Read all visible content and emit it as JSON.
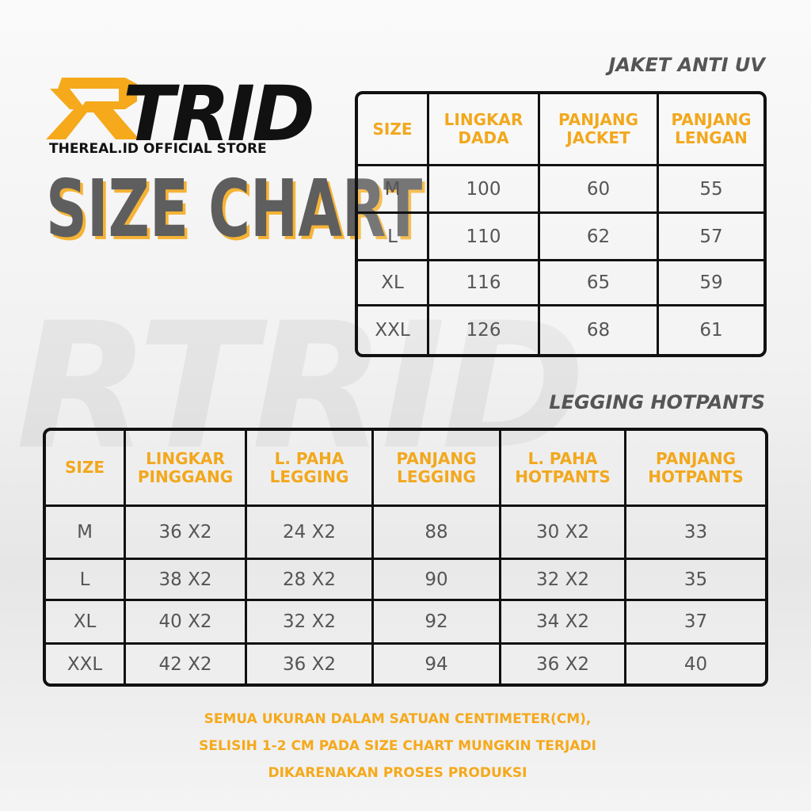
{
  "logo": {
    "text": "TRID",
    "tagline": "THEREAL.ID OFFICIAL STORE"
  },
  "heading": "SIZE CHART",
  "jacket": {
    "title": "JAKET ANTI UV",
    "header": [
      [
        "SIZE"
      ],
      [
        "LINGKAR",
        "DADA"
      ],
      [
        "PANJANG",
        "JACKET"
      ],
      [
        "PANJANG",
        "LENGAN"
      ]
    ],
    "rows": [
      [
        "M",
        "100",
        "60",
        "55"
      ],
      [
        "L",
        "110",
        "62",
        "57"
      ],
      [
        "XL",
        "116",
        "65",
        "59"
      ],
      [
        "XXL",
        "126",
        "68",
        "61"
      ]
    ]
  },
  "legging": {
    "title": "LEGGING HOTPANTS",
    "header": [
      [
        "SIZE"
      ],
      [
        "LINGKAR",
        "PINGGANG"
      ],
      [
        "L. PAHA",
        "LEGGING"
      ],
      [
        "PANJANG",
        "LEGGING"
      ],
      [
        "L. PAHA",
        "HOTPANTS"
      ],
      [
        "PANJANG",
        "HOTPANTS"
      ]
    ],
    "rows": [
      [
        "M",
        "36 X2",
        "24 X2",
        "88",
        "30 X2",
        "33"
      ],
      [
        "L",
        "38 X2",
        "28 X2",
        "90",
        "32 X2",
        "35"
      ],
      [
        "XL",
        "40 X2",
        "32 X2",
        "92",
        "34 X2",
        "37"
      ],
      [
        "XXL",
        "42 X2",
        "36 X2",
        "94",
        "36 X2",
        "40"
      ]
    ]
  },
  "footer": [
    "SEMUA UKURAN DALAM SATUAN CENTIMETER(CM),",
    "SELISIH 1-2 CM PADA SIZE CHART MUNGKIN TERJADI",
    "DIKARENAKAN PROSES PRODUKSI"
  ]
}
